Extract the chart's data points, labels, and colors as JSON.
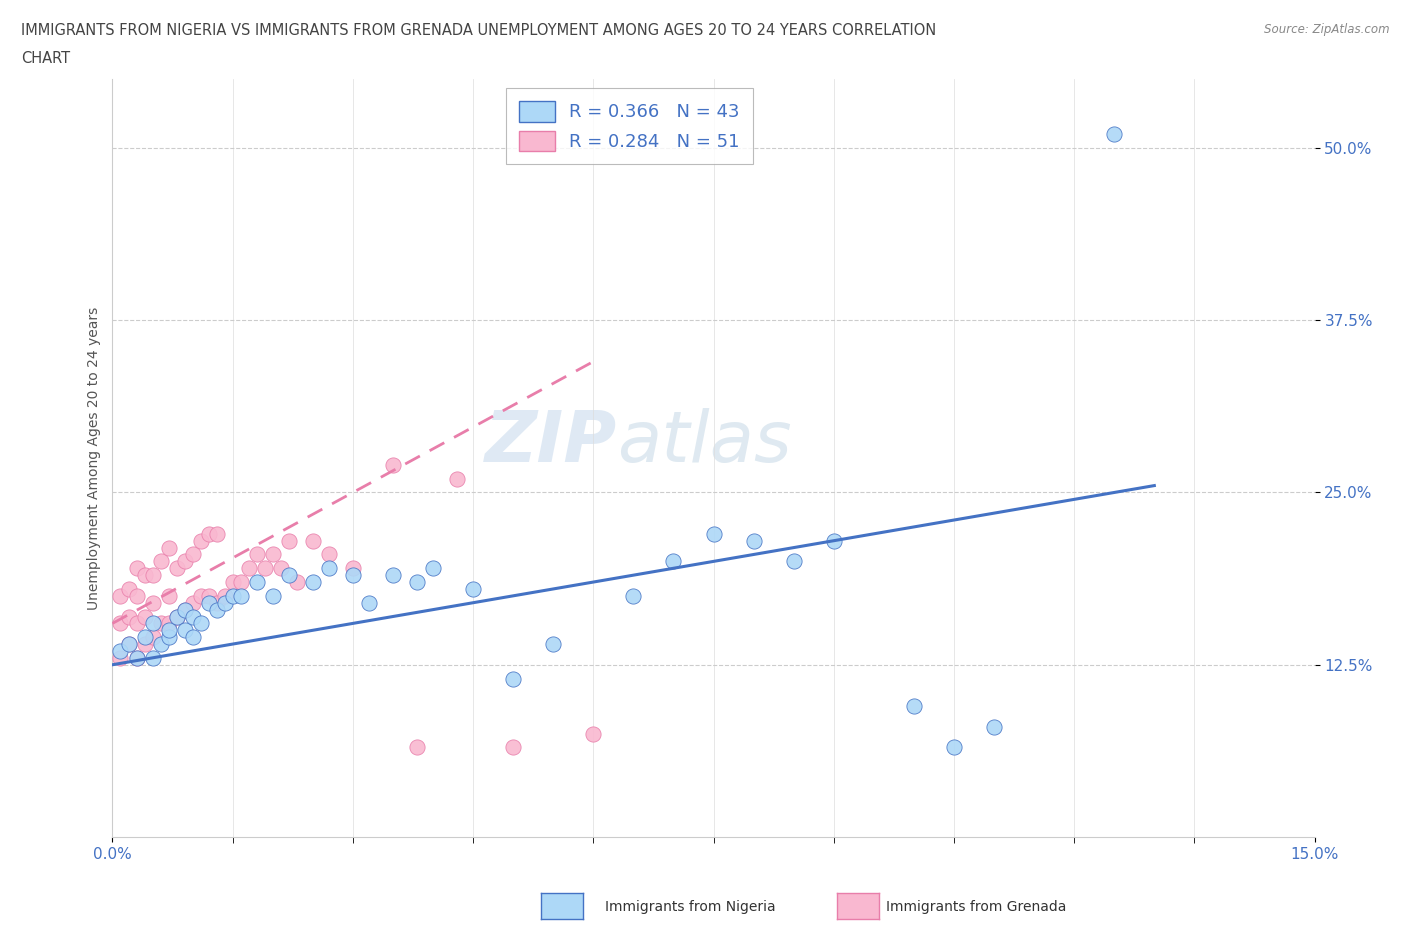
{
  "title_line1": "IMMIGRANTS FROM NIGERIA VS IMMIGRANTS FROM GRENADA UNEMPLOYMENT AMONG AGES 20 TO 24 YEARS CORRELATION",
  "title_line2": "CHART",
  "source": "Source: ZipAtlas.com",
  "ylabel": "Unemployment Among Ages 20 to 24 years",
  "x_min": 0.0,
  "x_max": 0.15,
  "y_min": 0.0,
  "y_max": 0.55,
  "nigeria_color": "#add8f7",
  "grenada_color": "#f9b8d0",
  "nigeria_line_color": "#4472c4",
  "grenada_line_color": "#e87eaa",
  "nigeria_R": 0.366,
  "nigeria_N": 43,
  "grenada_R": 0.284,
  "grenada_N": 51,
  "watermark_zip": "ZIP",
  "watermark_atlas": "atlas",
  "ytick_values": [
    0.125,
    0.25,
    0.375,
    0.5
  ],
  "nigeria_x": [
    0.001,
    0.002,
    0.003,
    0.004,
    0.005,
    0.005,
    0.006,
    0.007,
    0.007,
    0.008,
    0.009,
    0.009,
    0.01,
    0.01,
    0.011,
    0.012,
    0.013,
    0.014,
    0.015,
    0.016,
    0.018,
    0.02,
    0.022,
    0.025,
    0.027,
    0.03,
    0.032,
    0.035,
    0.038,
    0.04,
    0.045,
    0.05,
    0.055,
    0.065,
    0.07,
    0.075,
    0.08,
    0.085,
    0.09,
    0.1,
    0.105,
    0.11,
    0.125
  ],
  "nigeria_y": [
    0.135,
    0.14,
    0.13,
    0.145,
    0.13,
    0.155,
    0.14,
    0.145,
    0.15,
    0.16,
    0.15,
    0.165,
    0.145,
    0.16,
    0.155,
    0.17,
    0.165,
    0.17,
    0.175,
    0.175,
    0.185,
    0.175,
    0.19,
    0.185,
    0.195,
    0.19,
    0.17,
    0.19,
    0.185,
    0.195,
    0.18,
    0.115,
    0.14,
    0.175,
    0.2,
    0.22,
    0.215,
    0.2,
    0.215,
    0.095,
    0.065,
    0.08,
    0.51
  ],
  "grenada_x": [
    0.001,
    0.001,
    0.001,
    0.002,
    0.002,
    0.002,
    0.003,
    0.003,
    0.003,
    0.003,
    0.004,
    0.004,
    0.004,
    0.005,
    0.005,
    0.005,
    0.006,
    0.006,
    0.007,
    0.007,
    0.007,
    0.008,
    0.008,
    0.009,
    0.009,
    0.01,
    0.01,
    0.011,
    0.011,
    0.012,
    0.012,
    0.013,
    0.013,
    0.014,
    0.015,
    0.016,
    0.017,
    0.018,
    0.019,
    0.02,
    0.021,
    0.022,
    0.023,
    0.025,
    0.027,
    0.03,
    0.035,
    0.038,
    0.043,
    0.05,
    0.06
  ],
  "grenada_y": [
    0.13,
    0.155,
    0.175,
    0.14,
    0.16,
    0.18,
    0.13,
    0.155,
    0.175,
    0.195,
    0.14,
    0.16,
    0.19,
    0.145,
    0.17,
    0.19,
    0.155,
    0.2,
    0.155,
    0.175,
    0.21,
    0.16,
    0.195,
    0.165,
    0.2,
    0.17,
    0.205,
    0.175,
    0.215,
    0.175,
    0.22,
    0.17,
    0.22,
    0.175,
    0.185,
    0.185,
    0.195,
    0.205,
    0.195,
    0.205,
    0.195,
    0.215,
    0.185,
    0.215,
    0.205,
    0.195,
    0.27,
    0.065,
    0.26,
    0.065,
    0.075
  ],
  "nigeria_trend_x": [
    0.0,
    0.13
  ],
  "nigeria_trend_y": [
    0.125,
    0.255
  ],
  "grenada_trend_x": [
    0.0,
    0.06
  ],
  "grenada_trend_y": [
    0.155,
    0.345
  ]
}
